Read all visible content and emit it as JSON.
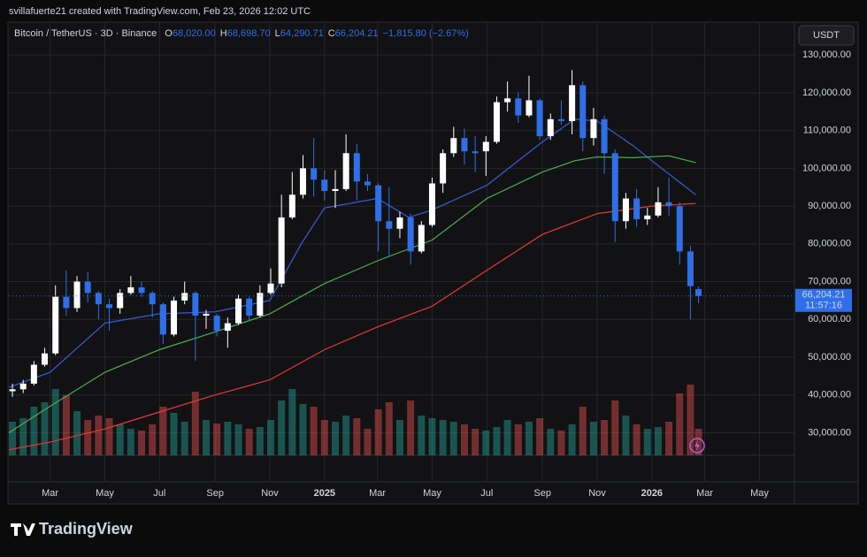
{
  "chart_data": {
    "type": "candlestick",
    "credit": "svillafuerte21 created with TradingView.com, Feb 23, 2026 12:02 UTC",
    "symbol": "Bitcoin / TetherUS · 3D · Binance",
    "ohlc_labels": [
      {
        "key": "O",
        "label": "68,020.00"
      },
      {
        "key": "H",
        "label": "68,698.70"
      },
      {
        "key": "L",
        "label": "64,290.71"
      },
      {
        "key": "C",
        "label": "66,204.21"
      }
    ],
    "change_label": "−1,815.80 (−2.67%)",
    "currency": "USDT",
    "countdown": "11:57:16",
    "brand": "TradingView",
    "up_color": "#ffffff",
    "down_color": "#2f6fe8",
    "grid": true,
    "x": [
      -42,
      -30,
      -18,
      -6,
      6,
      18,
      30,
      42,
      54,
      66,
      78,
      90,
      102,
      114,
      126,
      138,
      150,
      162,
      174,
      186,
      198,
      210,
      222,
      234,
      246,
      258,
      270,
      282,
      294,
      306,
      318,
      330,
      342,
      354,
      366,
      378,
      390,
      402,
      414,
      426,
      438,
      450,
      462,
      474,
      486,
      498,
      510,
      522,
      534,
      546,
      558,
      570,
      582,
      594,
      606,
      618,
      630,
      642,
      654,
      666,
      678,
      690,
      702,
      714,
      723
    ],
    "open": [
      41000,
      41500,
      43000,
      48000,
      51000,
      66000,
      63000,
      70000,
      67000,
      64000,
      63000,
      67000,
      68500,
      67000,
      64000,
      56000,
      65000,
      67000,
      61000,
      61000,
      57000,
      59000,
      65500,
      61000,
      67000,
      69500,
      87000,
      93000,
      100000,
      97000,
      94000,
      94500,
      104000,
      96500,
      95500,
      86000,
      84000,
      87000,
      78000,
      85000,
      96000,
      104000,
      108000,
      104500,
      104500,
      107000,
      117500,
      118500,
      114000,
      118000,
      108500,
      113000,
      112500,
      122000,
      108000,
      113000,
      104000,
      86000,
      92000,
      86500,
      87500,
      91000,
      90000,
      78000,
      68020
    ],
    "high": [
      43000,
      44000,
      49000,
      52500,
      69000,
      73000,
      71500,
      72500,
      67500,
      65500,
      68000,
      71500,
      70000,
      67500,
      64500,
      66000,
      70000,
      67500,
      62500,
      61500,
      60500,
      66500,
      66000,
      69000,
      73500,
      93000,
      99000,
      103500,
      108000,
      99500,
      99500,
      109000,
      106500,
      98500,
      96000,
      95000,
      88500,
      88000,
      86000,
      97500,
      105000,
      111000,
      110500,
      108500,
      108500,
      119000,
      123000,
      120000,
      124500,
      118500,
      114500,
      118000,
      126000,
      123000,
      116000,
      114000,
      105000,
      93500,
      94500,
      89500,
      95000,
      97500,
      91000,
      79500,
      68698.7
    ],
    "low": [
      39500,
      40500,
      42500,
      47500,
      50500,
      61000,
      62000,
      64500,
      60000,
      57000,
      61500,
      66500,
      66000,
      60500,
      53500,
      55500,
      64000,
      49000,
      57500,
      55500,
      52500,
      58500,
      59500,
      60500,
      66500,
      68500,
      86500,
      92000,
      92500,
      91500,
      89500,
      94000,
      91500,
      94000,
      78000,
      76500,
      81500,
      74500,
      77500,
      84500,
      93500,
      103000,
      101000,
      99000,
      98000,
      106500,
      115000,
      112000,
      113500,
      107500,
      107500,
      111500,
      109000,
      104500,
      106000,
      98500,
      80500,
      84000,
      84500,
      85000,
      87000,
      87500,
      74500,
      60000,
      64290.71
    ],
    "close": [
      41500,
      43000,
      48000,
      51000,
      66000,
      63000,
      70000,
      67000,
      64000,
      63000,
      67000,
      68500,
      67000,
      64000,
      56000,
      65000,
      67000,
      61000,
      61500,
      57000,
      59000,
      65500,
      61000,
      67000,
      69500,
      87000,
      93000,
      100000,
      97000,
      94000,
      94500,
      104000,
      96500,
      95500,
      86000,
      84000,
      87000,
      78000,
      85000,
      96000,
      104000,
      108000,
      104500,
      104000,
      107000,
      117500,
      118500,
      114000,
      118000,
      108500,
      113000,
      112500,
      122000,
      108000,
      113000,
      104000,
      86000,
      92000,
      86500,
      87500,
      91000,
      90000,
      78000,
      68800,
      66204.21
    ],
    "volume": [
      38,
      42,
      55,
      60,
      75,
      68,
      50,
      40,
      45,
      42,
      35,
      30,
      28,
      35,
      55,
      48,
      38,
      72,
      40,
      36,
      38,
      35,
      30,
      32,
      40,
      62,
      75,
      58,
      55,
      40,
      38,
      45,
      42,
      30,
      52,
      60,
      40,
      62,
      45,
      42,
      40,
      38,
      35,
      30,
      28,
      32,
      40,
      35,
      38,
      42,
      30,
      28,
      35,
      55,
      38,
      40,
      62,
      45,
      35,
      30,
      32,
      38,
      70,
      80,
      30
    ],
    "volume_lim": [
      0,
      100
    ],
    "xlim": [
      -46,
      830
    ],
    "ylim": [
      17000,
      138700
    ],
    "xticks": [
      {
        "value": 0,
        "label": "Mar"
      },
      {
        "value": 61,
        "label": "May"
      },
      {
        "value": 122,
        "label": "Jul"
      },
      {
        "value": 184,
        "label": "Sep"
      },
      {
        "value": 245,
        "label": "Nov"
      },
      {
        "value": 306,
        "label": "2025"
      },
      {
        "value": 365,
        "label": "Mar"
      },
      {
        "value": 426,
        "label": "May"
      },
      {
        "value": 487,
        "label": "Jul"
      },
      {
        "value": 549,
        "label": "Sep"
      },
      {
        "value": 610,
        "label": "Nov"
      },
      {
        "value": 671,
        "label": "2026"
      },
      {
        "value": 730,
        "label": "Mar"
      },
      {
        "value": 791,
        "label": "May"
      }
    ],
    "yticks": [
      {
        "value": 30000,
        "label": "30,000.00"
      },
      {
        "value": 40000,
        "label": "40,000.00"
      },
      {
        "value": 50000,
        "label": "50,000.00"
      },
      {
        "value": 60000,
        "label": "60,000.00"
      },
      {
        "value": 70000,
        "label": "70,000.00"
      },
      {
        "value": 80000,
        "label": "80,000.00"
      },
      {
        "value": 90000,
        "label": "90,000.00"
      },
      {
        "value": 100000,
        "label": "100,000.00"
      },
      {
        "value": 110000,
        "label": "110,000.00"
      },
      {
        "value": 120000,
        "label": "120,000.00"
      },
      {
        "value": 130000,
        "label": "130,000.00"
      }
    ],
    "moving_averages": [
      {
        "color": "#3b5bdb",
        "x": [
          -46,
          0,
          61,
          122,
          184,
          245,
          280,
          306,
          365,
          400,
          426,
          487,
          549,
          585,
          610,
          650,
          671,
          720
        ],
        "values": [
          42000,
          46000,
          59000,
          61500,
          62000,
          65000,
          80000,
          89500,
          92000,
          87000,
          89000,
          95500,
          107000,
          113000,
          112500,
          106000,
          102000,
          93000
        ]
      },
      {
        "color": "#4caf50",
        "x": [
          -46,
          0,
          61,
          122,
          184,
          245,
          306,
          365,
          426,
          487,
          549,
          585,
          610,
          650,
          690,
          720
        ],
        "values": [
          30000,
          37000,
          46000,
          52000,
          56700,
          61500,
          69500,
          75500,
          81000,
          92000,
          99000,
          102000,
          103000,
          102800,
          103300,
          101500
        ]
      },
      {
        "color": "#e53935",
        "x": [
          -46,
          0,
          61,
          122,
          184,
          245,
          306,
          365,
          426,
          487,
          549,
          610,
          671,
          720
        ],
        "values": [
          25500,
          27500,
          31000,
          35500,
          40000,
          44000,
          52000,
          58000,
          63500,
          73000,
          82500,
          88000,
          90000,
          90700
        ]
      }
    ]
  }
}
